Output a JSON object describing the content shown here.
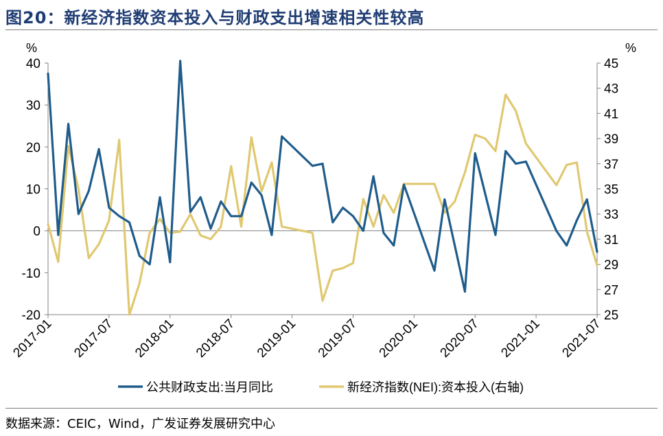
{
  "figure": {
    "title": "图20：新经济指数资本投入与财政支出增速相关性较高",
    "source": "数据来源：CEIC，Wind，广发证券发展研究中心"
  },
  "chart_data": {
    "type": "line",
    "left_axis": {
      "unit": "%",
      "ylim": [
        -20,
        40
      ],
      "ticks": [
        40,
        30,
        20,
        10,
        0,
        -10,
        -20
      ]
    },
    "right_axis": {
      "unit": "%",
      "ylim": [
        25,
        45
      ],
      "ticks": [
        45,
        43,
        41,
        39,
        37,
        35,
        33,
        31,
        29,
        27,
        25
      ]
    },
    "x_ticks": [
      "2017-01",
      "2017-07",
      "2018-01",
      "2018-07",
      "2019-01",
      "2019-07",
      "2020-01",
      "2020-07",
      "2021-01",
      "2021-07"
    ],
    "x_range": [
      "2017-01",
      "2021-07"
    ],
    "series": [
      {
        "name": "公共财政支出:当月同比",
        "axis": "left",
        "color": "#1f5c8b",
        "points": [
          [
            "2017-01",
            37.5
          ],
          [
            "2017-02",
            -1
          ],
          [
            "2017-03",
            25.5
          ],
          [
            "2017-04",
            4
          ],
          [
            "2017-05",
            9.5
          ],
          [
            "2017-06",
            19.5
          ],
          [
            "2017-07",
            5.5
          ],
          [
            "2017-08",
            3.5
          ],
          [
            "2017-09",
            2
          ],
          [
            "2017-10",
            -6
          ],
          [
            "2017-11",
            -8
          ],
          [
            "2017-12",
            8
          ],
          [
            "2018-01",
            -7.5
          ],
          [
            "2018-02",
            40.5
          ],
          [
            "2018-03",
            4.5
          ],
          [
            "2018-04",
            8
          ],
          [
            "2018-05",
            0.5
          ],
          [
            "2018-06",
            7
          ],
          [
            "2018-07",
            3.5
          ],
          [
            "2018-08",
            3.5
          ],
          [
            "2018-09",
            11.5
          ],
          [
            "2018-10",
            8.5
          ],
          [
            "2018-11",
            -1
          ],
          [
            "2018-12",
            22.5
          ],
          [
            "2019-03",
            15.5
          ],
          [
            "2019-04",
            16
          ],
          [
            "2019-05",
            2
          ],
          [
            "2019-06",
            5.5
          ],
          [
            "2019-07",
            3.5
          ],
          [
            "2019-08",
            0
          ],
          [
            "2019-09",
            13
          ],
          [
            "2019-10",
            -0.5
          ],
          [
            "2019-11",
            -3.5
          ],
          [
            "2019-12",
            11
          ],
          [
            "2020-03",
            -9.5
          ],
          [
            "2020-04",
            7.5
          ],
          [
            "2020-06",
            -14.5
          ],
          [
            "2020-07",
            18.5
          ],
          [
            "2020-09",
            -1
          ],
          [
            "2020-10",
            19
          ],
          [
            "2020-11",
            16
          ],
          [
            "2020-12",
            16.5
          ],
          [
            "2021-03",
            0
          ],
          [
            "2021-04",
            -3.5
          ],
          [
            "2021-05",
            2.5
          ],
          [
            "2021-06",
            7.5
          ],
          [
            "2021-07",
            -5
          ]
        ]
      },
      {
        "name": "新经济指数(NEI):资本投入(右轴)",
        "axis": "right",
        "color": "#e0c870",
        "points": [
          [
            "2017-01",
            32.2
          ],
          [
            "2017-02",
            29.2
          ],
          [
            "2017-03",
            38.4
          ],
          [
            "2017-04",
            35
          ],
          [
            "2017-05",
            29.5
          ],
          [
            "2017-06",
            30.6
          ],
          [
            "2017-07",
            32.5
          ],
          [
            "2017-08",
            38.9
          ],
          [
            "2017-09",
            25
          ],
          [
            "2017-10",
            27.5
          ],
          [
            "2017-11",
            31.5
          ],
          [
            "2017-12",
            32.6
          ],
          [
            "2018-01",
            31.5
          ],
          [
            "2018-02",
            31.6
          ],
          [
            "2018-03",
            33
          ],
          [
            "2018-04",
            31.3
          ],
          [
            "2018-05",
            31
          ],
          [
            "2018-06",
            32
          ],
          [
            "2018-07",
            36.8
          ],
          [
            "2018-08",
            32
          ],
          [
            "2018-09",
            39.1
          ],
          [
            "2018-10",
            34.8
          ],
          [
            "2018-11",
            37.1
          ],
          [
            "2018-12",
            32
          ],
          [
            "2019-03",
            31.5
          ],
          [
            "2019-04",
            26.1
          ],
          [
            "2019-05",
            28.5
          ],
          [
            "2019-06",
            28.7
          ],
          [
            "2019-07",
            29.1
          ],
          [
            "2019-08",
            34.2
          ],
          [
            "2019-09",
            32
          ],
          [
            "2019-10",
            34.5
          ],
          [
            "2019-11",
            33.1
          ],
          [
            "2019-12",
            35.4
          ],
          [
            "2020-03",
            35.4
          ],
          [
            "2020-04",
            33.1
          ],
          [
            "2020-05",
            34
          ],
          [
            "2020-06",
            36.3
          ],
          [
            "2020-07",
            39.3
          ],
          [
            "2020-08",
            39
          ],
          [
            "2020-09",
            38
          ],
          [
            "2020-10",
            42.5
          ],
          [
            "2020-11",
            41.2
          ],
          [
            "2020-12",
            38.6
          ],
          [
            "2021-03",
            35.3
          ],
          [
            "2021-04",
            36.9
          ],
          [
            "2021-05",
            37.1
          ],
          [
            "2021-06",
            31.6
          ],
          [
            "2021-07",
            28.9
          ]
        ]
      }
    ]
  }
}
